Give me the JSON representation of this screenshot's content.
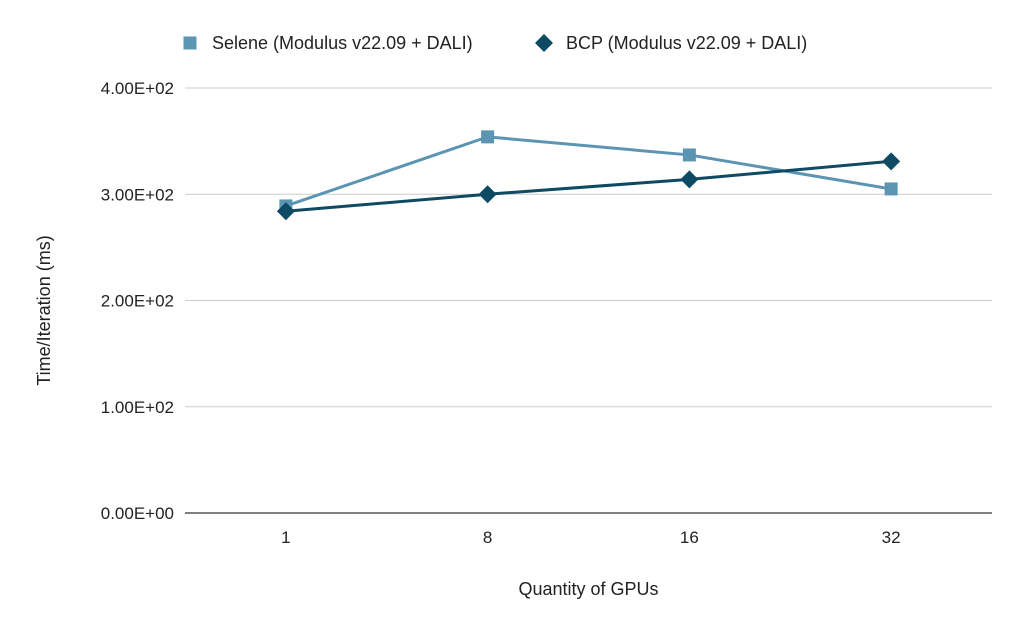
{
  "chart_data": {
    "type": "line",
    "title": "",
    "xlabel": "Quantity of GPUs",
    "ylabel": "Time/Iteration (ms)",
    "categories": [
      "1",
      "8",
      "16",
      "32"
    ],
    "ylim": [
      0,
      400
    ],
    "yticks": [
      {
        "value": 0,
        "label": "0.00E+00"
      },
      {
        "value": 100,
        "label": "1.00E+02"
      },
      {
        "value": 200,
        "label": "2.00E+02"
      },
      {
        "value": 300,
        "label": "3.00E+02"
      },
      {
        "value": 400,
        "label": "4.00E+02"
      }
    ],
    "grid": true,
    "legend_position": "top",
    "series": [
      {
        "name": "Selene (Modulus v22.09 + DALI)",
        "marker": "square",
        "color": "#5B95B3",
        "values": [
          289,
          354,
          337,
          305
        ]
      },
      {
        "name": "BCP (Modulus v22.09 + DALI)",
        "marker": "diamond",
        "color": "#0E4A63",
        "values": [
          284,
          300,
          314,
          331
        ]
      }
    ]
  }
}
